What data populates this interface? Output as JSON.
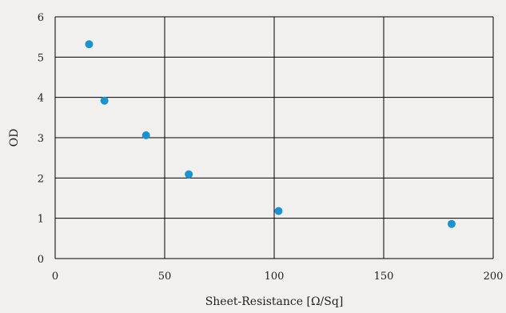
{
  "chart_data": {
    "type": "scatter",
    "title": "",
    "xlabel": "Sheet-Resistance [Ω/Sq]",
    "ylabel": "OD",
    "xlim": [
      0,
      200
    ],
    "ylim": [
      0,
      6
    ],
    "x_ticks": [
      0,
      50,
      100,
      150,
      200
    ],
    "y_ticks": [
      0,
      1,
      2,
      3,
      4,
      5,
      6
    ],
    "x_tick_labels": [
      "0",
      "50",
      "100",
      "150",
      "200"
    ],
    "y_tick_labels": [
      "0",
      "1",
      "2",
      "3",
      "4",
      "5",
      "6"
    ],
    "grid": true,
    "legend": "none",
    "series": [
      {
        "color": "#1b93d1",
        "points": [
          {
            "x": 15.5,
            "y": 5.32
          },
          {
            "x": 22.5,
            "y": 3.92
          },
          {
            "x": 41.5,
            "y": 3.06
          },
          {
            "x": 61,
            "y": 2.09
          },
          {
            "x": 102,
            "y": 1.18
          },
          {
            "x": 181,
            "y": 0.86
          }
        ]
      }
    ],
    "background": "#f2f0ee",
    "grid_color": "#000000"
  }
}
